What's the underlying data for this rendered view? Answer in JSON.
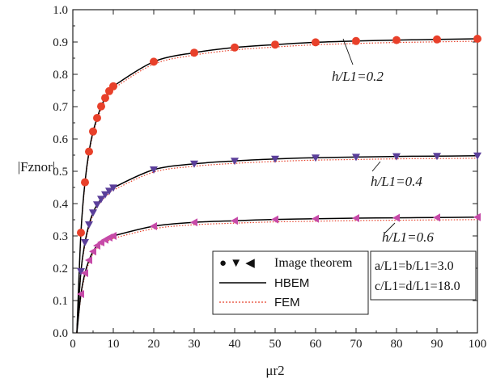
{
  "chart_data": {
    "type": "line",
    "title": "",
    "xlabel": "μr2",
    "ylabel": "|Fznor|",
    "xlim": [
      0,
      100
    ],
    "ylim": [
      0.0,
      1.0
    ],
    "xticks": [
      "0",
      "10",
      "20",
      "30",
      "40",
      "50",
      "60",
      "70",
      "80",
      "90",
      "100"
    ],
    "yticks": [
      "0.0",
      "0.1",
      "0.2",
      "0.3",
      "0.4",
      "0.5",
      "0.6",
      "0.7",
      "0.8",
      "0.9",
      "1.0"
    ],
    "curve_labels": [
      "h/L1=0.2",
      "h/L1=0.4",
      "h/L1=0.6"
    ],
    "legend": {
      "placement": "bottom-right",
      "entries": [
        "Image theorem",
        "HBEM",
        "FEM"
      ],
      "marker_symbols": "● ▼ ◀"
    },
    "notes": [
      "a/L1=b/L1=3.0",
      "c/L1=d/L1=18.0"
    ],
    "series": [
      {
        "name": "h/L1=0.2",
        "marker": "circle",
        "color": "#e8402a",
        "x": [
          2,
          3,
          4,
          5,
          6,
          7,
          8,
          9,
          10,
          20,
          30,
          40,
          50,
          60,
          70,
          80,
          90,
          100
        ],
        "values": [
          0.31,
          0.466,
          0.561,
          0.623,
          0.665,
          0.701,
          0.727,
          0.748,
          0.763,
          0.839,
          0.867,
          0.883,
          0.892,
          0.899,
          0.903,
          0.906,
          0.908,
          0.91
        ]
      },
      {
        "name": "h/L1=0.4",
        "marker": "triangle-down",
        "color": "#5b3f9a",
        "x": [
          2,
          3,
          4,
          5,
          6,
          7,
          8,
          9,
          10,
          20,
          30,
          40,
          50,
          60,
          70,
          80,
          90,
          100
        ],
        "values": [
          0.19,
          0.28,
          0.335,
          0.372,
          0.397,
          0.414,
          0.428,
          0.439,
          0.449,
          0.505,
          0.523,
          0.532,
          0.538,
          0.542,
          0.544,
          0.546,
          0.547,
          0.548
        ]
      },
      {
        "name": "h/L1=0.6",
        "marker": "triangle-left",
        "color": "#c64aa8",
        "x": [
          2,
          3,
          4,
          5,
          6,
          7,
          8,
          9,
          10,
          20,
          30,
          40,
          50,
          60,
          70,
          80,
          90,
          100
        ],
        "values": [
          0.12,
          0.185,
          0.225,
          0.252,
          0.27,
          0.28,
          0.288,
          0.295,
          0.3,
          0.33,
          0.342,
          0.347,
          0.351,
          0.353,
          0.355,
          0.356,
          0.357,
          0.358
        ]
      }
    ]
  }
}
